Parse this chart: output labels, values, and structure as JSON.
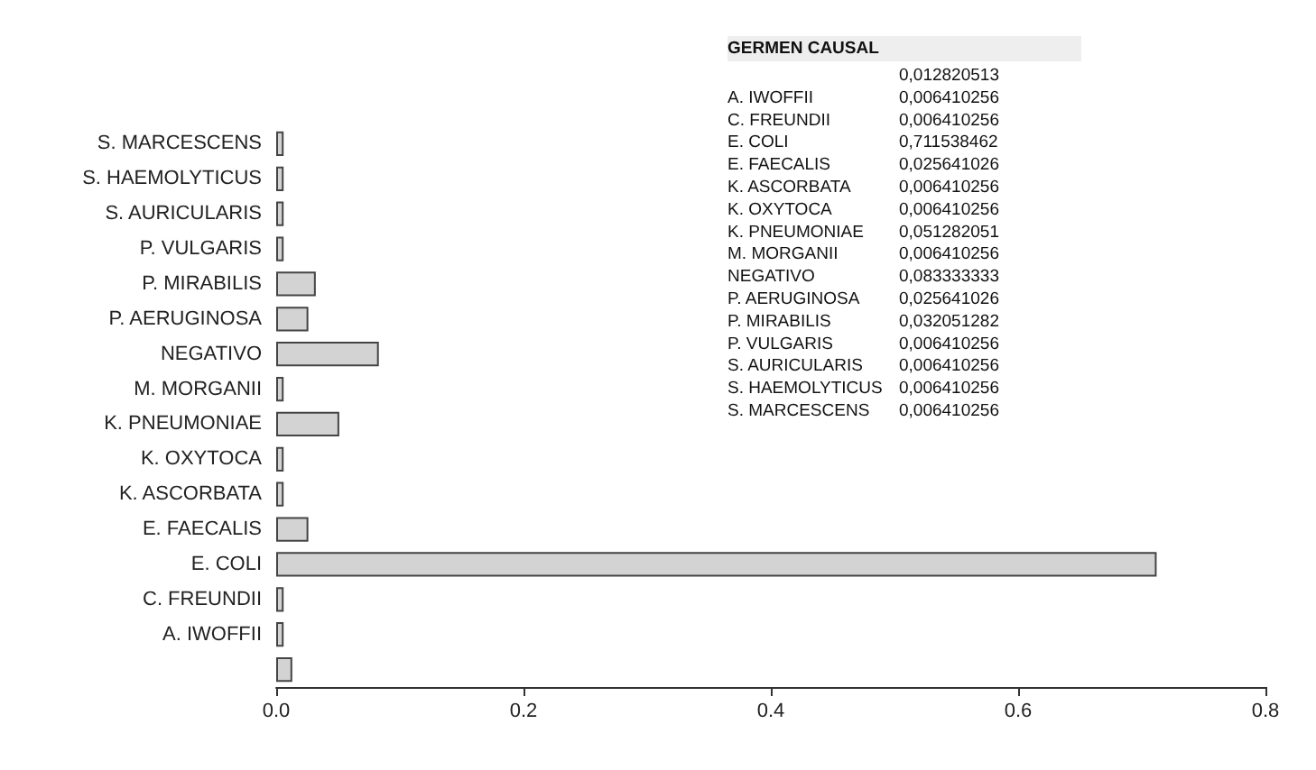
{
  "chart_data": [
    {
      "type": "bar",
      "orientation": "horizontal",
      "categories": [
        "S. MARCESCENS",
        "S. HAEMOLYTICUS",
        "S. AURICULARIS",
        "P. VULGARIS",
        "P. MIRABILIS",
        "P. AERUGINOSA",
        "NEGATIVO",
        "M. MORGANII",
        "K. PNEUMONIAE",
        "K. OXYTOCA",
        "K. ASCORBATA",
        "E. FAECALIS",
        "E. COLI",
        "C. FREUNDII",
        "A. IWOFFII",
        null
      ],
      "values": [
        0.006,
        0.006,
        0.006,
        0.006,
        0.032,
        0.026,
        0.083,
        0.006,
        0.051,
        0.006,
        0.006,
        0.026,
        0.712,
        0.006,
        0.006,
        0.013
      ],
      "color": "#d3d3d3",
      "xlim": [
        0,
        0.8
      ],
      "xticks": [
        {
          "value": 0,
          "label": "0.0"
        },
        {
          "value": 0.2,
          "label": "0.2"
        },
        {
          "value": 0.4,
          "label": "0.4"
        },
        {
          "value": 0.6,
          "label": "0.6"
        },
        {
          "value": 0.8,
          "label": "0.8"
        }
      ],
      "grid": false
    },
    {
      "type": "other",
      "title": "GERMEN CAUSAL",
      "categories": [
        null,
        "A. IWOFFII",
        "C. FREUNDII",
        "E. COLI",
        "E. FAECALIS",
        "K. ASCORBATA",
        "K. OXYTOCA",
        "K. PNEUMONIAE",
        "M. MORGANII",
        "NEGATIVO",
        "P. AERUGINOSA",
        "P. MIRABILIS",
        "P. VULGARIS",
        "S. AURICULARIS",
        "S. HAEMOLYTICUS",
        "S. MARCESCENS"
      ],
      "annotations": [
        "0,012820513",
        "0,006410256",
        "0,006410256",
        "0,711538462",
        "0,025641026",
        "0,006410256",
        "0,006410256",
        "0,051282051",
        "0,006410256",
        "0,083333333",
        "0,025641026",
        "0,032051282",
        "0,006410256",
        "0,006410256",
        "0,006410256",
        "0,006410256"
      ]
    }
  ]
}
